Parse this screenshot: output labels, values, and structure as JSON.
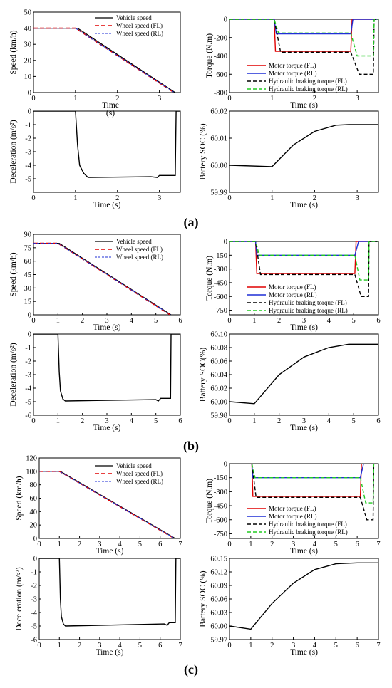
{
  "panel_labels": [
    "(a)",
    "(b)",
    "(c)"
  ],
  "legends": {
    "speed": [
      "Vehicle speed",
      "Wheel speed (FL)",
      "Wheel speed (RL)"
    ],
    "torque": [
      "Motor torque (FL)",
      "Motor torque (RL)",
      "Hydraulic braking torque (FL)",
      "Hydraulic braking torque (RL)"
    ]
  },
  "colors": {
    "black": "#000000",
    "red": "#e00000",
    "blue": "#1f2fd6",
    "green": "#22cc22"
  },
  "chart_data": [
    {
      "id": "a-speed",
      "type": "line",
      "xlabel": "Time\n(s)",
      "ylabel": "Speed (km/h)",
      "xlim": [
        0,
        3.5
      ],
      "ylim": [
        0,
        50
      ],
      "xticks": [
        "0",
        "1",
        "2",
        "3"
      ],
      "yticks": [
        "0",
        "10",
        "20",
        "30",
        "40",
        "50"
      ],
      "series": [
        {
          "name": "Vehicle speed",
          "x": [
            0,
            1.05,
            3.38
          ],
          "y": [
            40,
            40,
            0
          ]
        },
        {
          "name": "Wheel speed (FL)",
          "x": [
            0,
            1.0,
            3.35
          ],
          "y": [
            40,
            40,
            0
          ]
        },
        {
          "name": "Wheel speed (RL)",
          "x": [
            0,
            1.0,
            3.36
          ],
          "y": [
            40,
            40,
            0
          ]
        }
      ]
    },
    {
      "id": "a-torque",
      "type": "line",
      "xlabel": "Time (s)",
      "ylabel": "Torque (N.m)",
      "xlim": [
        0,
        3.5
      ],
      "ylim": [
        -800,
        0
      ],
      "xticks": [
        "0",
        "1",
        "2",
        "3"
      ],
      "yticks": [
        "0",
        "-200",
        "-400",
        "-600",
        "-800"
      ],
      "series": [
        {
          "name": "Motor torque (FL)",
          "x": [
            0,
            1.05,
            1.08,
            2.85,
            2.88,
            3.5
          ],
          "y": [
            0,
            0,
            -350,
            -350,
            0,
            0
          ]
        },
        {
          "name": "Motor torque (RL)",
          "x": [
            0,
            1.05,
            1.1,
            2.85,
            2.9,
            3.5
          ],
          "y": [
            0,
            0,
            -160,
            -160,
            0,
            0
          ]
        },
        {
          "name": "Hydraulic braking torque (FL)",
          "x": [
            0,
            1.05,
            1.2,
            2.85,
            3.05,
            3.38,
            3.4,
            3.5
          ],
          "y": [
            0,
            0,
            -360,
            -360,
            -600,
            -600,
            0,
            0
          ]
        },
        {
          "name": "Hydraulic braking torque (RL)",
          "x": [
            0,
            1.05,
            1.15,
            2.85,
            3.0,
            3.38,
            3.4,
            3.5
          ],
          "y": [
            0,
            0,
            -150,
            -150,
            -400,
            -400,
            0,
            0
          ]
        }
      ]
    },
    {
      "id": "a-decel",
      "type": "line",
      "xlabel": "Time (s)",
      "ylabel": "Deceleration (m/s²)",
      "xlim": [
        0,
        3.5
      ],
      "ylim": [
        -6,
        0
      ],
      "xticks": [
        "0",
        "1",
        "2",
        "3"
      ],
      "yticks": [
        "0",
        "-1",
        "-2",
        "-3",
        "-4",
        "-5"
      ],
      "series": [
        {
          "name": "",
          "x": [
            0,
            1.0,
            1.05,
            1.1,
            1.2,
            1.3,
            2.8,
            2.95,
            3.0,
            3.38,
            3.4,
            3.5
          ],
          "y": [
            0,
            0,
            -2.5,
            -4.0,
            -4.6,
            -4.9,
            -4.85,
            -4.9,
            -4.75,
            -4.75,
            0,
            0
          ]
        }
      ]
    },
    {
      "id": "a-soc",
      "type": "line",
      "xlabel": "Time (s)",
      "ylabel": "Battery SOC (%)",
      "xlim": [
        0,
        3.5
      ],
      "ylim": [
        59.99,
        60.02
      ],
      "xticks": [
        "0",
        "1",
        "2",
        "3"
      ],
      "yticks": [
        "59.99",
        "60.00",
        "60.01",
        "60.02"
      ],
      "series": [
        {
          "name": "",
          "x": [
            0,
            1.0,
            1.5,
            2.0,
            2.5,
            2.8,
            3.5
          ],
          "y": [
            60.0,
            59.9995,
            60.0075,
            60.0125,
            60.0148,
            60.015,
            60.015
          ]
        }
      ]
    },
    {
      "id": "b-speed",
      "type": "line",
      "xlabel": "Time (s)",
      "ylabel": "Speed (km/h)",
      "xlim": [
        0,
        6
      ],
      "ylim": [
        0,
        90
      ],
      "xticks": [
        "0",
        "1",
        "2",
        "3",
        "4",
        "5",
        "6"
      ],
      "yticks": [
        "0",
        "15",
        "30",
        "45",
        "60",
        "75",
        "90"
      ],
      "series": [
        {
          "name": "Vehicle speed",
          "x": [
            0,
            1.05,
            5.62
          ],
          "y": [
            80,
            80,
            0
          ]
        },
        {
          "name": "Wheel speed (FL)",
          "x": [
            0,
            1.0,
            5.58
          ],
          "y": [
            80,
            80,
            0
          ]
        },
        {
          "name": "Wheel speed (RL)",
          "x": [
            0,
            1.0,
            5.6
          ],
          "y": [
            80,
            80,
            0
          ]
        }
      ]
    },
    {
      "id": "b-torque",
      "type": "line",
      "xlabel": "Time (s)",
      "ylabel": "Torque (N.m)",
      "xlim": [
        0,
        6
      ],
      "ylim": [
        -800,
        0
      ],
      "xticks": [
        "0",
        "1",
        "2",
        "3",
        "4",
        "5",
        "6"
      ],
      "yticks": [
        "0",
        "-150",
        "-300",
        "-450",
        "-600",
        "-750"
      ],
      "series": [
        {
          "name": "Motor torque (FL)",
          "x": [
            0,
            1.05,
            1.1,
            5.05,
            5.1,
            6
          ],
          "y": [
            0,
            0,
            -350,
            -350,
            0,
            0
          ]
        },
        {
          "name": "Motor torque (RL)",
          "x": [
            0,
            1.05,
            1.1,
            5.05,
            5.2,
            6
          ],
          "y": [
            0,
            0,
            -150,
            -150,
            0,
            0
          ]
        },
        {
          "name": "Hydraulic braking torque (FL)",
          "x": [
            0,
            1.05,
            1.25,
            5.05,
            5.3,
            5.6,
            5.62,
            6
          ],
          "y": [
            0,
            0,
            -360,
            -360,
            -600,
            -600,
            0,
            0
          ]
        },
        {
          "name": "Hydraulic braking torque (RL)",
          "x": [
            0,
            1.05,
            1.2,
            5.05,
            5.25,
            5.6,
            5.62,
            6
          ],
          "y": [
            0,
            0,
            -150,
            -150,
            -420,
            -420,
            0,
            0
          ]
        }
      ]
    },
    {
      "id": "b-decel",
      "type": "line",
      "xlabel": "Time (s)",
      "ylabel": "Deceleration (m/s²)",
      "xlim": [
        0,
        6
      ],
      "ylim": [
        -6,
        0
      ],
      "xticks": [
        "0",
        "1",
        "2",
        "3",
        "4",
        "5",
        "6"
      ],
      "yticks": [
        "0",
        "-1",
        "-2",
        "-3",
        "-4",
        "-5",
        "-6"
      ],
      "series": [
        {
          "name": "",
          "x": [
            0,
            1.0,
            1.05,
            1.1,
            1.2,
            1.3,
            5.0,
            5.1,
            5.2,
            5.6,
            5.62,
            6
          ],
          "y": [
            0,
            0,
            -2.8,
            -4.2,
            -4.8,
            -4.95,
            -4.85,
            -4.95,
            -4.75,
            -4.75,
            0,
            0
          ]
        }
      ]
    },
    {
      "id": "b-soc",
      "type": "line",
      "xlabel": "Time (s)",
      "ylabel": "Battery SOC(%)",
      "xlim": [
        0,
        6
      ],
      "ylim": [
        59.98,
        60.1
      ],
      "xticks": [
        "0",
        "1",
        "2",
        "3",
        "4",
        "5",
        "6"
      ],
      "yticks": [
        "59.98",
        "60.00",
        "60.02",
        "60.04",
        "60.06",
        "60.08",
        "60.10"
      ],
      "series": [
        {
          "name": "",
          "x": [
            0,
            1.0,
            2.0,
            3.0,
            4.0,
            4.8,
            6
          ],
          "y": [
            60.0,
            59.997,
            60.04,
            60.066,
            60.08,
            60.085,
            60.085
          ]
        }
      ]
    },
    {
      "id": "c-speed",
      "type": "line",
      "xlabel": "Time (s)",
      "ylabel": "Speed (km/h)",
      "xlim": [
        0,
        7
      ],
      "ylim": [
        0,
        120
      ],
      "xticks": [
        "0",
        "1",
        "2",
        "3",
        "4",
        "5",
        "6",
        "7"
      ],
      "yticks": [
        "0",
        "20",
        "40",
        "60",
        "80",
        "100",
        "120"
      ],
      "series": [
        {
          "name": "Vehicle speed",
          "x": [
            0,
            1.05,
            6.75
          ],
          "y": [
            100,
            100,
            0
          ]
        },
        {
          "name": "Wheel speed (FL)",
          "x": [
            0,
            1.0,
            6.7
          ],
          "y": [
            100,
            100,
            0
          ]
        },
        {
          "name": "Wheel speed (RL)",
          "x": [
            0,
            1.0,
            6.72
          ],
          "y": [
            100,
            100,
            0
          ]
        }
      ]
    },
    {
      "id": "c-torque",
      "type": "line",
      "xlabel": "Time (s)",
      "ylabel": "Torque (N.m)",
      "xlim": [
        0,
        7
      ],
      "ylim": [
        -800,
        0
      ],
      "xticks": [
        "0",
        "1",
        "2",
        "3",
        "4",
        "5",
        "6",
        "7"
      ],
      "yticks": [
        "0",
        "-150",
        "-300",
        "-450",
        "-600",
        "-750"
      ],
      "series": [
        {
          "name": "Motor torque (FL)",
          "x": [
            0,
            1.05,
            1.1,
            6.15,
            6.2,
            7
          ],
          "y": [
            0,
            0,
            -350,
            -350,
            0,
            0
          ]
        },
        {
          "name": "Motor torque (RL)",
          "x": [
            0,
            1.05,
            1.1,
            6.15,
            6.3,
            7
          ],
          "y": [
            0,
            0,
            -150,
            -150,
            0,
            0
          ]
        },
        {
          "name": "Hydraulic braking torque (FL)",
          "x": [
            0,
            1.05,
            1.25,
            6.15,
            6.45,
            6.75,
            6.78,
            7
          ],
          "y": [
            0,
            0,
            -360,
            -360,
            -600,
            -600,
            0,
            0
          ]
        },
        {
          "name": "Hydraulic braking torque (RL)",
          "x": [
            0,
            1.05,
            1.2,
            6.15,
            6.4,
            6.75,
            6.78,
            7
          ],
          "y": [
            0,
            0,
            -150,
            -150,
            -420,
            -420,
            0,
            0
          ]
        }
      ]
    },
    {
      "id": "c-decel",
      "type": "line",
      "xlabel": "Time (s)",
      "ylabel": "Deceleration (m/s²)",
      "xlim": [
        0,
        7
      ],
      "ylim": [
        -6,
        0
      ],
      "xticks": [
        "0",
        "1",
        "2",
        "3",
        "4",
        "5",
        "6",
        "7"
      ],
      "yticks": [
        "0",
        "-1",
        "-2",
        "-3",
        "-4",
        "-5",
        "-6"
      ],
      "series": [
        {
          "name": "",
          "x": [
            0,
            1.0,
            1.05,
            1.1,
            1.2,
            1.3,
            6.2,
            6.35,
            6.45,
            6.75,
            6.78,
            7
          ],
          "y": [
            0,
            0,
            -3.0,
            -4.3,
            -4.85,
            -5.0,
            -4.85,
            -4.95,
            -4.75,
            -4.75,
            0,
            0
          ]
        }
      ]
    },
    {
      "id": "c-soc",
      "type": "line",
      "xlabel": "Time (s)",
      "ylabel": "Battery SOC (%)",
      "xlim": [
        0,
        7
      ],
      "ylim": [
        59.97,
        60.15
      ],
      "xticks": [
        "0",
        "1",
        "2",
        "3",
        "4",
        "5",
        "6",
        "7"
      ],
      "yticks": [
        "59.97",
        "60.00",
        "60.03",
        "60.06",
        "60.09",
        "60.12",
        "60.15"
      ],
      "series": [
        {
          "name": "",
          "x": [
            0,
            1.0,
            2.0,
            3.0,
            4.0,
            5.0,
            6.0,
            7
          ],
          "y": [
            60.0,
            59.993,
            60.05,
            60.095,
            60.125,
            60.138,
            60.14,
            60.14
          ]
        }
      ]
    }
  ]
}
